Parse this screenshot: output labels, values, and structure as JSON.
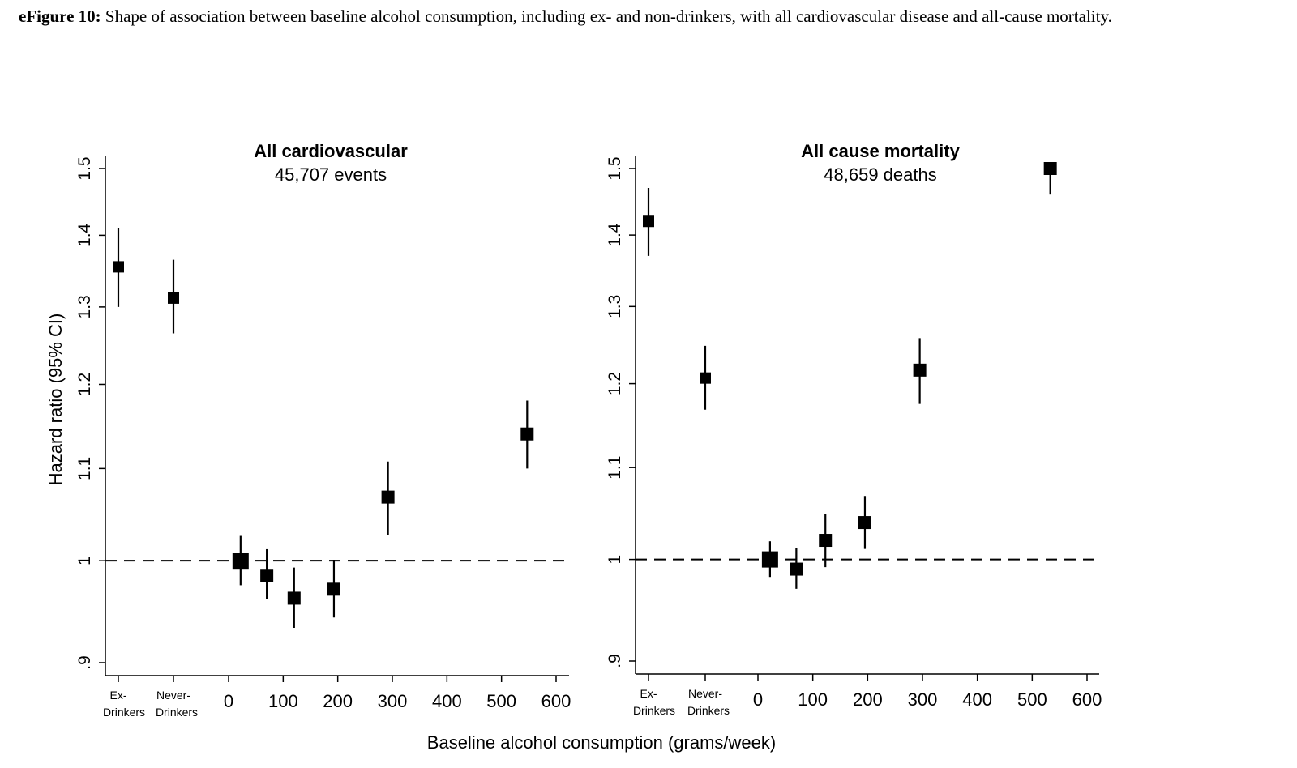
{
  "caption": {
    "label": "eFigure 10:",
    "text": " Shape of association between baseline alcohol consumption, including ex- and non-drinkers, with all cardiovascular disease and all-cause mortality."
  },
  "shared_xlabel": "Baseline alcohol consumption (grams/week)",
  "chart_data": [
    {
      "type": "scatter",
      "title": "All cardiovascular",
      "subtitle": "45,707 events",
      "ylabel": "Hazard ratio (95% CI)",
      "y_scale": "log",
      "ylim": [
        0.9,
        1.5
      ],
      "y_ticks": [
        {
          "v": 0.9,
          "label": ".9"
        },
        {
          "v": 1.0,
          "label": "1"
        },
        {
          "v": 1.1,
          "label": "1.1"
        },
        {
          "v": 1.2,
          "label": "1.2"
        },
        {
          "v": 1.3,
          "label": "1.3"
        },
        {
          "v": 1.4,
          "label": "1.4"
        },
        {
          "v": 1.5,
          "label": "1.5"
        }
      ],
      "x_ticks": [
        0,
        100,
        200,
        300,
        400,
        500,
        600
      ],
      "xlim": [
        0,
        600
      ],
      "reference_line": 1.0,
      "categorical": [
        {
          "label_lines": [
            "Ex-",
            "Drinkers"
          ],
          "hr": 1.355,
          "lo": 1.3,
          "hi": 1.41
        },
        {
          "label_lines": [
            "Never-",
            "Drinkers"
          ],
          "hr": 1.312,
          "lo": 1.265,
          "hi": 1.365
        }
      ],
      "points": [
        {
          "x": 22,
          "hr": 1.0,
          "lo": 0.975,
          "hi": 1.026,
          "reference": true
        },
        {
          "x": 70,
          "hr": 0.985,
          "lo": 0.961,
          "hi": 1.012
        },
        {
          "x": 120,
          "hr": 0.962,
          "lo": 0.933,
          "hi": 0.993
        },
        {
          "x": 193,
          "hr": 0.971,
          "lo": 0.943,
          "hi": 1.001
        },
        {
          "x": 292,
          "hr": 1.068,
          "lo": 1.027,
          "hi": 1.108
        },
        {
          "x": 547,
          "hr": 1.14,
          "lo": 1.1,
          "hi": 1.18
        }
      ]
    },
    {
      "type": "scatter",
      "title": "All cause mortality",
      "subtitle": "48,659 deaths",
      "ylabel": "",
      "y_scale": "log",
      "ylim": [
        0.9,
        1.5
      ],
      "y_ticks": [
        {
          "v": 0.9,
          "label": ".9"
        },
        {
          "v": 1.0,
          "label": "1"
        },
        {
          "v": 1.1,
          "label": "1.1"
        },
        {
          "v": 1.2,
          "label": "1.2"
        },
        {
          "v": 1.3,
          "label": "1.3"
        },
        {
          "v": 1.4,
          "label": "1.4"
        },
        {
          "v": 1.5,
          "label": "1.5"
        }
      ],
      "x_ticks": [
        0,
        100,
        200,
        300,
        400,
        500,
        600
      ],
      "xlim": [
        0,
        600
      ],
      "reference_line": 1.0,
      "categorical": [
        {
          "label_lines": [
            "Ex-",
            "Drinkers"
          ],
          "hr": 1.42,
          "lo": 1.37,
          "hi": 1.47
        },
        {
          "label_lines": [
            "Never-",
            "Drinkers"
          ],
          "hr": 1.207,
          "lo": 1.168,
          "hi": 1.248
        }
      ],
      "points": [
        {
          "x": 22,
          "hr": 1.0,
          "lo": 0.982,
          "hi": 1.019,
          "reference": true
        },
        {
          "x": 70,
          "hr": 0.99,
          "lo": 0.97,
          "hi": 1.012
        },
        {
          "x": 123,
          "hr": 1.02,
          "lo": 0.992,
          "hi": 1.048
        },
        {
          "x": 195,
          "hr": 1.039,
          "lo": 1.011,
          "hi": 1.068
        },
        {
          "x": 295,
          "hr": 1.217,
          "lo": 1.175,
          "hi": 1.258
        },
        {
          "x": 533,
          "hr": 1.5,
          "lo": 1.46,
          "hi": 1.5
        }
      ]
    }
  ]
}
